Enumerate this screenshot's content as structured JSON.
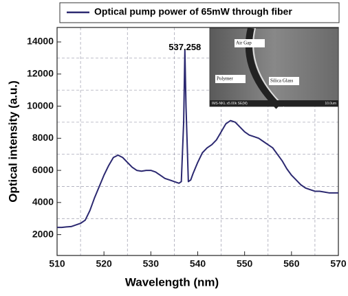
{
  "chart_data": {
    "type": "line",
    "xlabel": "Wavelength (nm)",
    "ylabel": "Optical intensity (a.u.)",
    "xlim": [
      510,
      570
    ],
    "ylim": [
      700,
      14900
    ],
    "xticks": [
      510,
      520,
      530,
      540,
      550,
      560,
      570
    ],
    "yticks": [
      2000,
      4000,
      6000,
      8000,
      10000,
      12000,
      14000
    ],
    "minor_xticks": [
      515,
      525,
      535,
      545,
      555,
      565
    ],
    "minor_yticks": [
      3000,
      5000,
      7000,
      9000,
      11000,
      13000
    ],
    "grid": true,
    "legend": "top",
    "annotation": {
      "text": "537.258",
      "x": 537.258,
      "y": 13500
    },
    "inset": {
      "labels": [
        "Air Gap",
        "Polymer",
        "Silica Glass"
      ],
      "footer": "IMS-NKL x5.00k SE(M)",
      "scale": "10.0um"
    },
    "x": [
      510,
      511,
      512,
      513,
      514,
      515,
      516,
      517,
      518,
      519,
      520,
      521,
      522,
      523,
      524,
      525,
      526,
      527,
      528,
      529,
      530,
      531,
      532,
      533,
      534,
      535,
      536,
      536.5,
      537,
      537.258,
      537.5,
      538,
      538.5,
      539,
      540,
      541,
      542,
      543,
      544,
      545,
      546,
      547,
      548,
      549,
      550,
      551,
      552,
      553,
      554,
      555,
      556,
      557,
      558,
      559,
      560,
      561,
      562,
      563,
      564,
      565,
      566,
      567,
      568,
      569,
      570
    ],
    "series": [
      {
        "name": "Optical pump power of 65mW through fiber",
        "color": "#2b2870",
        "values": [
          2450,
          2450,
          2480,
          2500,
          2600,
          2700,
          2900,
          3500,
          4300,
          5000,
          5700,
          6300,
          6800,
          6950,
          6800,
          6500,
          6200,
          6000,
          5950,
          6000,
          6000,
          5900,
          5700,
          5500,
          5400,
          5300,
          5200,
          5300,
          9000,
          13500,
          10000,
          5300,
          5400,
          5800,
          6500,
          7100,
          7400,
          7600,
          7900,
          8400,
          8900,
          9100,
          9000,
          8700,
          8400,
          8200,
          8100,
          8000,
          7800,
          7600,
          7400,
          7000,
          6600,
          6100,
          5700,
          5400,
          5100,
          4900,
          4800,
          4700,
          4700,
          4650,
          4600,
          4600,
          4600
        ]
      }
    ]
  }
}
